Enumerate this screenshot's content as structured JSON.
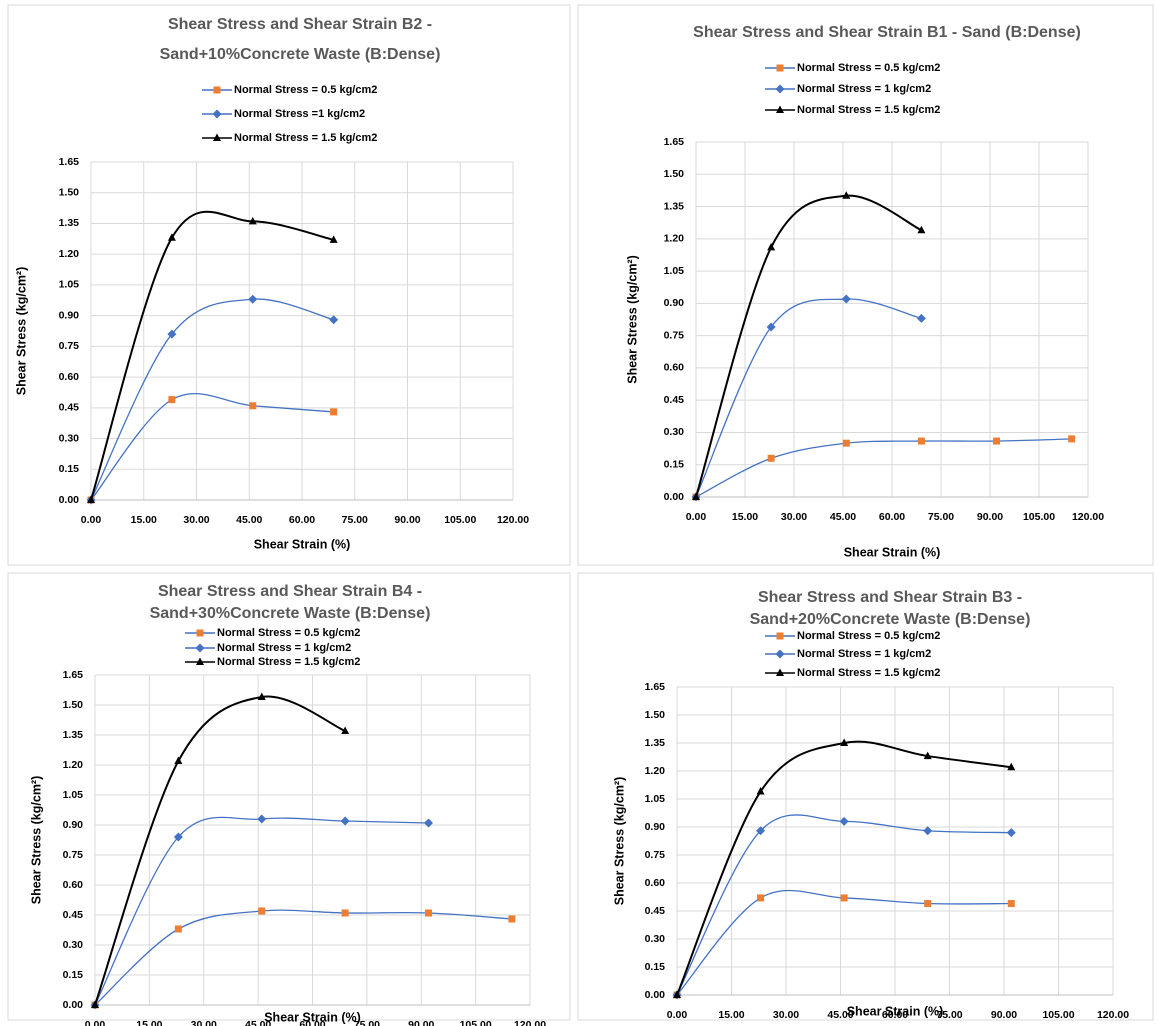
{
  "chart_data": [
    {
      "type": "line",
      "title": [
        "Shear Stress and Shear Strain  B2 -",
        "Sand+10%Concrete Waste (B:Dense)"
      ],
      "x_label": "Shear Strain  (%)",
      "y_label": "Shear Stress (kg/cm²)",
      "grid": true,
      "legend": "top",
      "xlim": [
        0,
        120
      ],
      "ylim": [
        0,
        1.65
      ],
      "xticks": [
        {
          "value": 0,
          "label": "0.00"
        },
        {
          "value": 15,
          "label": "15.00"
        },
        {
          "value": 30,
          "label": "30.00"
        },
        {
          "value": 45,
          "label": "45.00"
        },
        {
          "value": 60,
          "label": "60.00"
        },
        {
          "value": 75,
          "label": "75.00"
        },
        {
          "value": 90,
          "label": "90.00"
        },
        {
          "value": 105,
          "label": "105.00"
        },
        {
          "value": 120,
          "label": "120.00"
        }
      ],
      "yticks": [
        {
          "value": 0,
          "label": "0.00"
        },
        0.15,
        {
          "value": 0.3,
          "label": "0.30"
        },
        0.45,
        {
          "value": 0.6,
          "label": "0.60"
        },
        0.75,
        {
          "value": 0.9,
          "label": "0.90"
        },
        1.05,
        {
          "value": 1.2,
          "label": "1.20"
        },
        1.35,
        {
          "value": 1.5,
          "label": "1.50"
        },
        1.65
      ],
      "series": [
        {
          "name": "Normal Stress = 0.5 kg/cm2",
          "color": "#ed7d31",
          "line_color": "#4472c4",
          "marker": "square",
          "x": [
            0,
            23,
            46,
            69
          ],
          "values": [
            0,
            0.49,
            0.46,
            0.43
          ]
        },
        {
          "name": "Normal Stress =1 kg/cm2",
          "color": "#4472c4",
          "line_color": "#4472c4",
          "marker": "diamond",
          "x": [
            0,
            23,
            46,
            69
          ],
          "values": [
            0,
            0.81,
            0.98,
            0.88
          ]
        },
        {
          "name": "Normal Stress = 1.5 kg/cm2",
          "color": "#000000",
          "line_color": "#000000",
          "marker": "triangle",
          "x": [
            0,
            23,
            46,
            69
          ],
          "values": [
            0,
            1.28,
            1.36,
            1.27
          ]
        }
      ]
    },
    {
      "type": "line",
      "title": [
        "Shear Stress and Shear Strain  B1 - Sand (B:Dense)"
      ],
      "x_label": "Shear Strain  (%)",
      "y_label": "Shear Stress (kg/cm²)",
      "grid": true,
      "legend": "top",
      "xlim": [
        0,
        120
      ],
      "ylim": [
        0,
        1.65
      ],
      "xticks": [
        {
          "value": 0,
          "label": "0.00"
        },
        {
          "value": 15,
          "label": "15.00"
        },
        {
          "value": 30,
          "label": "30.00"
        },
        {
          "value": 45,
          "label": "45.00"
        },
        {
          "value": 60,
          "label": "60.00"
        },
        {
          "value": 75,
          "label": "75.00"
        },
        {
          "value": 90,
          "label": "90.00"
        },
        {
          "value": 105,
          "label": "105.00"
        },
        {
          "value": 120,
          "label": "120.00"
        }
      ],
      "yticks": [
        {
          "value": 0,
          "label": "0.00"
        },
        0.15,
        {
          "value": 0.3,
          "label": "0.30"
        },
        0.45,
        {
          "value": 0.6,
          "label": "0.60"
        },
        0.75,
        {
          "value": 0.9,
          "label": "0.90"
        },
        1.05,
        {
          "value": 1.2,
          "label": "1.20"
        },
        1.35,
        {
          "value": 1.5,
          "label": "1.50"
        },
        1.65
      ],
      "series": [
        {
          "name": "Normal Stress = 0.5 kg/cm2",
          "color": "#ed7d31",
          "line_color": "#4472c4",
          "marker": "square",
          "x": [
            0,
            23,
            46,
            69,
            92,
            115
          ],
          "values": [
            0,
            0.18,
            0.25,
            0.26,
            0.26,
            0.27
          ]
        },
        {
          "name": "Normal Stress = 1 kg/cm2",
          "color": "#4472c4",
          "line_color": "#4472c4",
          "marker": "diamond",
          "x": [
            0,
            23,
            46,
            69
          ],
          "values": [
            0,
            0.79,
            0.92,
            0.83
          ]
        },
        {
          "name": "Normal Stress = 1.5 kg/cm2",
          "color": "#000000",
          "line_color": "#000000",
          "marker": "triangle",
          "x": [
            0,
            23,
            46,
            69
          ],
          "values": [
            0,
            1.16,
            1.4,
            1.24
          ]
        }
      ]
    },
    {
      "type": "line",
      "title": [
        "Shear Stress and Shear Strain  B4 -",
        "Sand+30%Concrete Waste (B:Dense)"
      ],
      "x_label": "Shear Strain  (%)",
      "y_label": "Shear Stress (kg/cm²)",
      "grid": true,
      "legend": "top",
      "xlim": [
        0,
        120
      ],
      "ylim": [
        0,
        1.65
      ],
      "xticks": [
        {
          "value": 0,
          "label": "0.00"
        },
        {
          "value": 15,
          "label": "15.00"
        },
        {
          "value": 30,
          "label": "30.00"
        },
        {
          "value": 45,
          "label": "45.00"
        },
        {
          "value": 60,
          "label": "60.00"
        },
        {
          "value": 75,
          "label": "75.00"
        },
        {
          "value": 90,
          "label": "90.00"
        },
        {
          "value": 105,
          "label": "105.00"
        },
        {
          "value": 120,
          "label": "120.00"
        }
      ],
      "yticks": [
        {
          "value": 0,
          "label": "0.00"
        },
        0.15,
        {
          "value": 0.3,
          "label": "0.30"
        },
        0.45,
        {
          "value": 0.6,
          "label": "0.60"
        },
        0.75,
        {
          "value": 0.9,
          "label": "0.90"
        },
        1.05,
        {
          "value": 1.2,
          "label": "1.20"
        },
        1.35,
        {
          "value": 1.5,
          "label": "1.50"
        },
        1.65
      ],
      "series": [
        {
          "name": "Normal Stress = 0.5 kg/cm2",
          "color": "#ed7d31",
          "line_color": "#4472c4",
          "marker": "square",
          "x": [
            0,
            23,
            46,
            69,
            92,
            115
          ],
          "values": [
            0,
            0.38,
            0.47,
            0.46,
            0.46,
            0.43
          ]
        },
        {
          "name": "Normal Stress = 1 kg/cm2",
          "color": "#4472c4",
          "line_color": "#4472c4",
          "marker": "diamond",
          "x": [
            0,
            23,
            46,
            69,
            92
          ],
          "values": [
            0,
            0.84,
            0.93,
            0.92,
            0.91
          ]
        },
        {
          "name": "Normal Stress = 1.5 kg/cm2",
          "color": "#000000",
          "line_color": "#000000",
          "marker": "triangle",
          "x": [
            0,
            23,
            46,
            69
          ],
          "values": [
            0,
            1.22,
            1.54,
            1.37
          ]
        }
      ]
    },
    {
      "type": "line",
      "title": [
        "Shear Stress and Shear Strain  B3 -",
        "Sand+20%Concrete Waste (B:Dense)"
      ],
      "x_label": "Shear Strain  (%)",
      "y_label": "Shear Stress (kg/cm²)",
      "grid": true,
      "legend": "top",
      "xlim": [
        0,
        120
      ],
      "ylim": [
        0,
        1.65
      ],
      "xticks": [
        {
          "value": 0,
          "label": "0.00"
        },
        {
          "value": 15,
          "label": "15.00"
        },
        {
          "value": 30,
          "label": "30.00"
        },
        {
          "value": 45,
          "label": "45.00"
        },
        {
          "value": 60,
          "label": "60.00"
        },
        {
          "value": 75,
          "label": "75.00"
        },
        {
          "value": 90,
          "label": "90.00"
        },
        {
          "value": 105,
          "label": "105.00"
        },
        {
          "value": 120,
          "label": "120.00"
        }
      ],
      "yticks": [
        {
          "value": 0,
          "label": "0.00"
        },
        0.15,
        {
          "value": 0.3,
          "label": "0.30"
        },
        0.45,
        {
          "value": 0.6,
          "label": "0.60"
        },
        0.75,
        {
          "value": 0.9,
          "label": "0.90"
        },
        1.05,
        {
          "value": 1.2,
          "label": "1.20"
        },
        1.35,
        {
          "value": 1.5,
          "label": "1.50"
        },
        1.65
      ],
      "series": [
        {
          "name": "Normal Stress = 0.5 kg/cm2",
          "color": "#ed7d31",
          "line_color": "#4472c4",
          "marker": "square",
          "x": [
            0,
            23,
            46,
            69,
            92
          ],
          "values": [
            0,
            0.52,
            0.52,
            0.49,
            0.49
          ]
        },
        {
          "name": "Normal Stress = 1 kg/cm2",
          "color": "#4472c4",
          "line_color": "#4472c4",
          "marker": "diamond",
          "x": [
            0,
            23,
            46,
            69,
            92
          ],
          "values": [
            0,
            0.88,
            0.93,
            0.88,
            0.87
          ]
        },
        {
          "name": "Normal Stress = 1.5 kg/cm2",
          "color": "#000000",
          "line_color": "#000000",
          "marker": "triangle",
          "x": [
            0,
            23,
            46,
            69,
            92
          ],
          "values": [
            0,
            1.09,
            1.35,
            1.28,
            1.22
          ]
        }
      ]
    }
  ]
}
